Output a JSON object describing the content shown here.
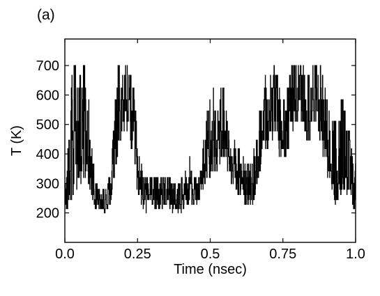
{
  "panel_label": "(a)",
  "chart_data": {
    "type": "line",
    "title": "",
    "xlabel": "Time (nsec)",
    "ylabel": "T (K)",
    "xlim": [
      0.0,
      1.0
    ],
    "ylim": [
      100,
      790
    ],
    "x_ticks": [
      0.0,
      0.25,
      0.5,
      0.75,
      1.0
    ],
    "x_tick_labels": [
      "0.0",
      "0.25",
      "0.5",
      "0.75",
      "1.0"
    ],
    "y_ticks": [
      200,
      300,
      400,
      500,
      600,
      700
    ],
    "y_tick_labels": [
      "200",
      "300",
      "400",
      "500",
      "600",
      "700"
    ],
    "temperature_levels": [
      200,
      214,
      229,
      245,
      262,
      280,
      299,
      320,
      342,
      366,
      391,
      418,
      447,
      478,
      511,
      546,
      584,
      624,
      667,
      700
    ],
    "grid": false,
    "legend": "none",
    "series": [
      {
        "color": "#000000",
        "x": [
          0.0,
          0.01,
          0.02,
          0.03,
          0.04,
          0.05,
          0.06,
          0.07,
          0.08,
          0.09,
          0.1,
          0.11,
          0.12,
          0.13,
          0.14,
          0.15,
          0.16,
          0.17,
          0.18,
          0.19,
          0.2,
          0.21,
          0.22,
          0.23,
          0.24,
          0.25,
          0.26,
          0.27,
          0.28,
          0.29,
          0.3,
          0.31,
          0.32,
          0.33,
          0.34,
          0.35,
          0.36,
          0.37,
          0.38,
          0.39,
          0.4,
          0.41,
          0.42,
          0.43,
          0.44,
          0.45,
          0.46,
          0.47,
          0.48,
          0.49,
          0.5,
          0.51,
          0.52,
          0.53,
          0.54,
          0.55,
          0.56,
          0.57,
          0.58,
          0.59,
          0.6,
          0.61,
          0.62,
          0.63,
          0.64,
          0.65,
          0.66,
          0.67,
          0.68,
          0.69,
          0.7,
          0.71,
          0.72,
          0.73,
          0.74,
          0.75,
          0.76,
          0.77,
          0.78,
          0.79,
          0.8,
          0.81,
          0.82,
          0.83,
          0.84,
          0.85,
          0.86,
          0.87,
          0.88,
          0.89,
          0.9,
          0.91,
          0.92,
          0.93,
          0.94,
          0.95,
          0.96,
          0.97,
          0.98,
          0.99,
          1.0
        ],
        "y_low": [
          200,
          200,
          210,
          240,
          260,
          280,
          300,
          320,
          300,
          260,
          210,
          200,
          210,
          200,
          200,
          210,
          240,
          300,
          360,
          420,
          460,
          480,
          470,
          400,
          330,
          260,
          220,
          200,
          200,
          210,
          230,
          200,
          210,
          200,
          210,
          220,
          210,
          200,
          210,
          200,
          200,
          210,
          220,
          240,
          220,
          220,
          220,
          240,
          280,
          310,
          320,
          340,
          320,
          360,
          380,
          380,
          340,
          300,
          280,
          260,
          260,
          240,
          220,
          210,
          200,
          240,
          280,
          330,
          370,
          400,
          420,
          440,
          460,
          420,
          380,
          360,
          380,
          420,
          470,
          490,
          500,
          500,
          470,
          440,
          440,
          460,
          480,
          470,
          430,
          380,
          320,
          280,
          240,
          230,
          240,
          260,
          280,
          250,
          230,
          220,
          200
        ],
        "y_high": [
          400,
          470,
          700,
          700,
          700,
          680,
          700,
          700,
          620,
          500,
          360,
          300,
          290,
          280,
          290,
          320,
          440,
          600,
          700,
          700,
          700,
          700,
          700,
          700,
          600,
          460,
          380,
          340,
          330,
          330,
          320,
          320,
          330,
          340,
          330,
          340,
          330,
          330,
          340,
          320,
          330,
          340,
          360,
          400,
          350,
          330,
          340,
          380,
          480,
          580,
          700,
          650,
          560,
          560,
          660,
          610,
          540,
          480,
          460,
          440,
          420,
          400,
          380,
          380,
          370,
          420,
          480,
          560,
          640,
          700,
          690,
          700,
          700,
          680,
          620,
          600,
          620,
          660,
          700,
          700,
          700,
          700,
          700,
          680,
          680,
          700,
          700,
          700,
          700,
          660,
          600,
          540,
          520,
          520,
          540,
          590,
          580,
          520,
          470,
          440,
          380
        ]
      }
    ]
  }
}
